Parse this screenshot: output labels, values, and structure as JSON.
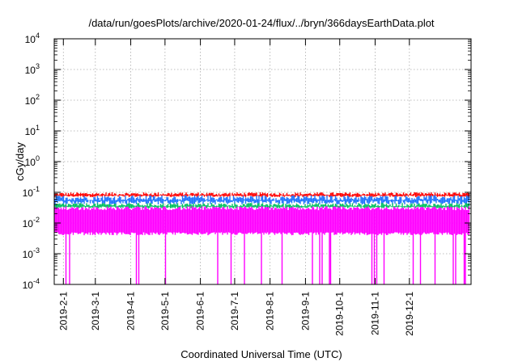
{
  "chart_data": {
    "type": "line",
    "title": "/data/run/goesPlots/archive/2020-01-24/flux/../bryn/366daysEarthData.plot",
    "xlabel": "Coordinated Universal Time (UTC)",
    "ylabel": "cGy/day",
    "yscale": "log",
    "ylim": [
      0.0001,
      10000
    ],
    "xlim": [
      "2019-01-24",
      "2020-01-24"
    ],
    "grid": true,
    "y_ticks": [
      {
        "base": "10",
        "exp": "-4"
      },
      {
        "base": "10",
        "exp": "-3"
      },
      {
        "base": "10",
        "exp": "-2"
      },
      {
        "base": "10",
        "exp": "-1"
      },
      {
        "base": "10",
        "exp": "0"
      },
      {
        "base": "10",
        "exp": "1"
      },
      {
        "base": "10",
        "exp": "2"
      },
      {
        "base": "10",
        "exp": "3"
      },
      {
        "base": "10",
        "exp": "4"
      }
    ],
    "x_ticks": [
      "2019-2-1",
      "2019-3-1",
      "2019-4-1",
      "2019-5-1",
      "2019-6-1",
      "2019-7-1",
      "2019-8-1",
      "2019-9-1",
      "2019-10-1",
      "2019-11-1",
      "2019-12-1"
    ],
    "series": [
      {
        "color": "#ff0000",
        "approx_level": 0.08,
        "range": [
          0.07,
          0.1
        ]
      },
      {
        "color": "#1e73ff",
        "approx_level": 0.055,
        "range": [
          0.04,
          0.08
        ]
      },
      {
        "color": "#00c060",
        "approx_level": 0.035,
        "range": [
          0.03,
          0.045
        ]
      },
      {
        "color": "#ff00ff",
        "approx_level": 0.02,
        "range": [
          0.0001,
          0.035
        ]
      }
    ]
  }
}
